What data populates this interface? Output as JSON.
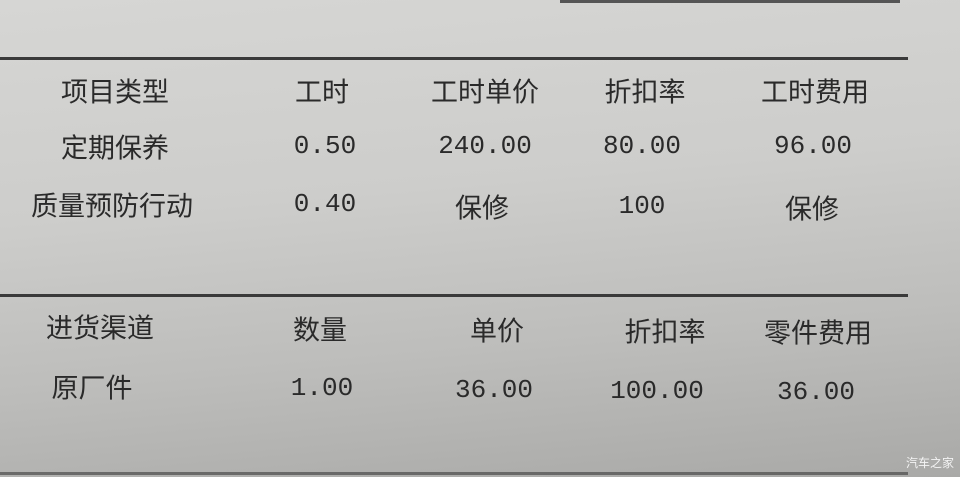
{
  "labor_table": {
    "headers": [
      "项目类型",
      "工时",
      "工时单价",
      "折扣率",
      "工时费用"
    ],
    "rows": [
      [
        "定期保养",
        "0.50",
        "240.00",
        "80.00",
        "96.00"
      ],
      [
        "质量预防行动",
        "0.40",
        "保修",
        "100",
        "保修"
      ]
    ]
  },
  "parts_table": {
    "headers": [
      "进货渠道",
      "数量",
      "单价",
      "折扣率",
      "零件费用"
    ],
    "rows": [
      [
        "原厂件",
        "1.00",
        "36.00",
        "100.00",
        "36.00"
      ]
    ]
  },
  "watermark": "汽车之家"
}
